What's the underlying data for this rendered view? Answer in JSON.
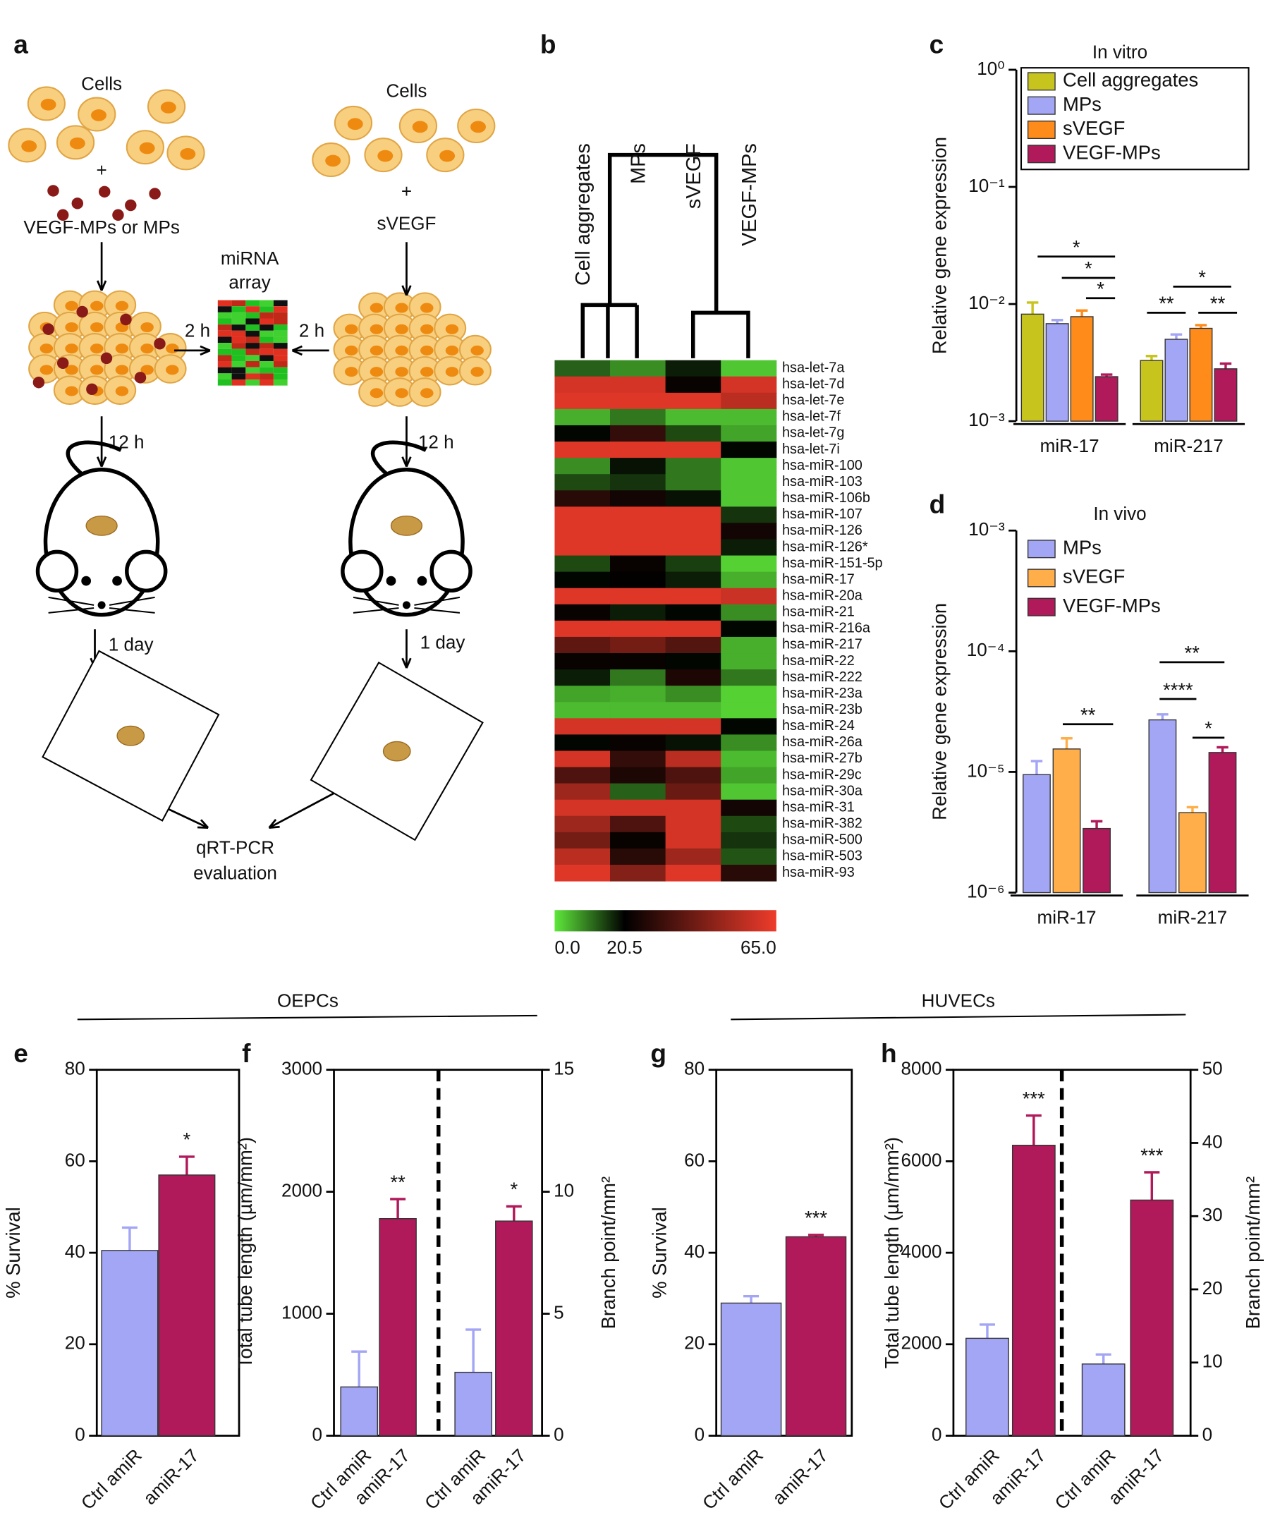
{
  "diagram": {
    "panel": "a",
    "left_cells": "Cells",
    "left_plus": "+",
    "left_particles": "VEGF-MPs or MPs",
    "array": [
      "miRNA",
      "array"
    ],
    "left_2h": "2 h",
    "right_2h": "2 h",
    "right_cells": "Cells",
    "right_plus": "+",
    "right_factor": "sVEGF",
    "left_12h": "12 h",
    "right_12h": "12 h",
    "left_1day": "1 day",
    "right_1day": "1 day",
    "output": [
      "qRT-PCR",
      "evaluation"
    ]
  },
  "headers": [
    "OEPCs",
    "HUVECs"
  ],
  "chart_data": [
    {
      "type": "heatmap",
      "panel": "b",
      "columns": [
        "Cell aggregates",
        "MPs",
        "sVEGF",
        "VEGF-MPs"
      ],
      "rows": [
        "hsa-let-7a",
        "hsa-let-7d",
        "hsa-let-7e",
        "hsa-let-7f",
        "hsa-let-7g",
        "hsa-let-7i",
        "hsa-miR-100",
        "hsa-miR-103",
        "hsa-miR-106b",
        "hsa-miR-107",
        "hsa-miR-126",
        "hsa-miR-126*",
        "hsa-miR-151-5p",
        "hsa-miR-17",
        "hsa-miR-20a",
        "hsa-miR-21",
        "hsa-miR-216a",
        "hsa-miR-217",
        "hsa-miR-22",
        "hsa-miR-222",
        "hsa-miR-23a",
        "hsa-miR-23b",
        "hsa-miR-24",
        "hsa-miR-26a",
        "hsa-miR-27b",
        "hsa-miR-29c",
        "hsa-miR-30a",
        "hsa-miR-31",
        "hsa-miR-382",
        "hsa-miR-500",
        "hsa-miR-503",
        "hsa-miR-93"
      ],
      "values": [
        [
          12,
          8,
          18,
          3
        ],
        [
          60,
          60,
          22,
          60
        ],
        [
          62,
          62,
          62,
          55
        ],
        [
          5,
          10,
          4,
          4
        ],
        [
          20,
          30,
          14,
          6
        ],
        [
          62,
          62,
          62,
          20
        ],
        [
          8,
          19,
          10,
          3
        ],
        [
          14,
          16,
          10,
          3
        ],
        [
          28,
          24,
          19,
          3
        ],
        [
          62,
          62,
          62,
          16
        ],
        [
          62,
          62,
          62,
          24
        ],
        [
          62,
          62,
          62,
          18
        ],
        [
          14,
          22,
          15,
          2
        ],
        [
          20,
          21,
          18,
          5
        ],
        [
          62,
          62,
          62,
          58
        ],
        [
          22,
          18,
          20,
          8
        ],
        [
          62,
          62,
          62,
          20
        ],
        [
          38,
          42,
          36,
          5
        ],
        [
          22,
          22,
          20,
          5
        ],
        [
          18,
          10,
          26,
          10
        ],
        [
          6,
          5,
          8,
          2
        ],
        [
          4,
          4,
          4,
          2
        ],
        [
          60,
          60,
          60,
          20
        ],
        [
          20,
          22,
          19,
          8
        ],
        [
          60,
          30,
          55,
          4
        ],
        [
          35,
          26,
          35,
          6
        ],
        [
          50,
          12,
          40,
          3
        ],
        [
          60,
          60,
          60,
          24
        ],
        [
          50,
          35,
          60,
          14
        ],
        [
          42,
          22,
          60,
          16
        ],
        [
          55,
          28,
          50,
          13
        ],
        [
          62,
          45,
          62,
          28
        ]
      ],
      "clim": [
        0,
        65
      ],
      "colors": [
        "#5ee83a",
        "#000000",
        "#ee3b2b"
      ],
      "colorbar_ticks": [
        {
          "value": 0,
          "label": "0.0"
        },
        {
          "value": 20.5,
          "label": "20.5"
        },
        {
          "value": 65,
          "label": "65.0"
        }
      ]
    },
    {
      "type": "bar",
      "panel": "c",
      "title": "In vitro",
      "ylabel": "Relative gene expression",
      "log_scale": true,
      "legend_frame": true,
      "categories": [
        "miR-17",
        "miR-217"
      ],
      "series": [
        {
          "name": "Cell aggregates",
          "color": "#c8c41e",
          "values": [
            0.0082,
            0.0033
          ],
          "errors": [
            0.0021,
            0.0003
          ]
        },
        {
          "name": "MPs",
          "color": "#a3a5f5",
          "values": [
            0.0068,
            0.005
          ],
          "errors": [
            0.0005,
            0.0005
          ]
        },
        {
          "name": "sVEGF",
          "color": "#ff8c1a",
          "values": [
            0.0078,
            0.0062
          ],
          "errors": [
            0.001,
            0.0004
          ]
        },
        {
          "name": "VEGF-MPs",
          "color": "#b0195a",
          "values": [
            0.0024,
            0.0028
          ],
          "errors": [
            0.0001,
            0.0003
          ]
        }
      ],
      "ylim": [
        0.001,
        1
      ],
      "yticks": [
        {
          "value": 0.001,
          "label": "10⁻³"
        },
        {
          "value": 0.01,
          "label": "10⁻²"
        },
        {
          "value": 0.1,
          "label": "10⁻¹"
        },
        {
          "value": 1,
          "label": "10⁰"
        }
      ],
      "annotations": [
        "*",
        "*",
        "*",
        "**",
        "**",
        "*"
      ]
    },
    {
      "type": "bar",
      "panel": "d",
      "title": "In vivo",
      "ylabel": "Relative gene expression",
      "log_scale": true,
      "legend_frame": false,
      "categories": [
        "miR-17",
        "miR-217"
      ],
      "series": [
        {
          "name": "MPs",
          "color": "#a3a5f5",
          "values": [
            9.5e-06,
            2.7e-05
          ],
          "errors": [
            2.8e-06,
            3e-06
          ]
        },
        {
          "name": "sVEGF",
          "color": "#ffae4a",
          "values": [
            1.55e-05,
            4.6e-06
          ],
          "errors": [
            3.5e-06,
            5e-07
          ]
        },
        {
          "name": "VEGF-MPs",
          "color": "#b0195a",
          "values": [
            3.4e-06,
            1.45e-05
          ],
          "errors": [
            5e-07,
            1.5e-06
          ]
        }
      ],
      "ylim": [
        1e-06,
        0.001
      ],
      "yticks": [
        {
          "value": 1e-06,
          "label": "10⁻⁶"
        },
        {
          "value": 1e-05,
          "label": "10⁻⁵"
        },
        {
          "value": 0.0001,
          "label": "10⁻⁴"
        },
        {
          "value": 0.001,
          "label": "10⁻³"
        }
      ],
      "annotations": [
        "**",
        "****",
        "**",
        "*"
      ]
    },
    {
      "type": "bar",
      "panel": "e",
      "ylabel": "% Survival",
      "categories": [
        "Ctrl amiR",
        "amiR-17"
      ],
      "colors": [
        "#a3a5f5",
        "#b0195a"
      ],
      "series": [
        {
          "values": [
            40.5,
            57
          ],
          "errors": [
            5,
            4
          ],
          "significance": [
            null,
            "*"
          ]
        }
      ],
      "ylim": [
        0,
        80
      ],
      "yticks": [
        0,
        20,
        40,
        60,
        80
      ]
    },
    {
      "type": "bar",
      "panel": "f",
      "ylabel": "Total tube  length (µm/mm²)",
      "y2label": "Branch point/mm²",
      "categories": [
        "Ctrl amiR",
        "amiR-17"
      ],
      "colors": [
        "#a3a5f5",
        "#b0195a"
      ],
      "series": [
        {
          "values": [
            400,
            1780
          ],
          "errors": [
            290,
            160
          ],
          "significance": [
            null,
            "**"
          ]
        },
        {
          "axis": "y2",
          "values": [
            2.6,
            8.8
          ],
          "errors": [
            1.75,
            0.6
          ],
          "significance": [
            null,
            "*"
          ]
        }
      ],
      "ylim": [
        0,
        3000
      ],
      "yticks": [
        0,
        1000,
        2000,
        3000
      ],
      "y2lim": [
        0,
        15
      ],
      "y2ticks": [
        0,
        5,
        10,
        15
      ]
    },
    {
      "type": "bar",
      "panel": "g",
      "ylabel": "% Survival",
      "categories": [
        "Ctrl amiR",
        "amiR-17"
      ],
      "colors": [
        "#a3a5f5",
        "#b0195a"
      ],
      "series": [
        {
          "values": [
            29,
            43.5
          ],
          "errors": [
            1.5,
            0.4
          ],
          "significance": [
            null,
            "***"
          ]
        }
      ],
      "ylim": [
        0,
        80
      ],
      "yticks": [
        0,
        20,
        40,
        60,
        80
      ]
    },
    {
      "type": "bar",
      "panel": "h",
      "ylabel": "Total tube  length (µm/mm²)",
      "y2label": "Branch point/mm²",
      "categories": [
        "Ctrl amiR",
        "amiR-17"
      ],
      "colors": [
        "#a3a5f5",
        "#b0195a"
      ],
      "series": [
        {
          "values": [
            2130,
            6350
          ],
          "errors": [
            300,
            650
          ],
          "significance": [
            null,
            "***"
          ]
        },
        {
          "axis": "y2",
          "values": [
            9.8,
            32.2
          ],
          "errors": [
            1.3,
            3.8
          ],
          "significance": [
            null,
            "***"
          ]
        }
      ],
      "ylim": [
        0,
        8000
      ],
      "yticks": [
        0,
        2000,
        4000,
        6000,
        8000
      ],
      "y2lim": [
        0,
        50
      ],
      "y2ticks": [
        0,
        10,
        20,
        30,
        40,
        50
      ]
    }
  ]
}
